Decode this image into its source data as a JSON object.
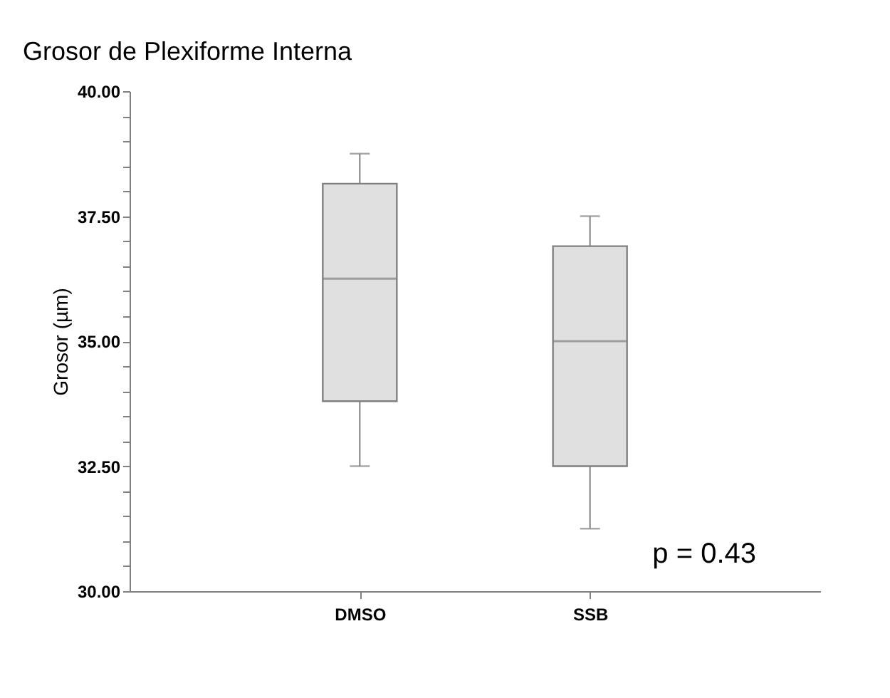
{
  "chart_data": {
    "type": "box",
    "title": "Grosor de Plexiforme Interna",
    "ylabel": "Grosor (µm)",
    "categories": [
      "DMSO",
      "SSB"
    ],
    "boxes": [
      {
        "low": 32.5,
        "q1": 33.8,
        "median": 36.25,
        "q3": 38.15,
        "high": 38.75
      },
      {
        "low": 31.25,
        "q1": 32.5,
        "median": 35.0,
        "q3": 36.9,
        "high": 37.5
      }
    ],
    "color": "#e0e0e0",
    "ylim": [
      30,
      40
    ],
    "yticks": [
      {
        "value": 30,
        "label": "30.00"
      },
      {
        "value": 30.5,
        "label": null
      },
      {
        "value": 31,
        "label": null
      },
      {
        "value": 31.5,
        "label": null
      },
      {
        "value": 32,
        "label": null
      },
      {
        "value": 32.5,
        "label": "32.50"
      },
      {
        "value": 33,
        "label": null
      },
      {
        "value": 33.5,
        "label": null
      },
      {
        "value": 34,
        "label": null
      },
      {
        "value": 34.5,
        "label": null
      },
      {
        "value": 35,
        "label": "35.00"
      },
      {
        "value": 35.5,
        "label": null
      },
      {
        "value": 36,
        "label": null
      },
      {
        "value": 36.5,
        "label": null
      },
      {
        "value": 37,
        "label": null
      },
      {
        "value": 37.5,
        "label": "37.50"
      },
      {
        "value": 38,
        "label": null
      },
      {
        "value": 38.5,
        "label": null
      },
      {
        "value": 39,
        "label": null
      },
      {
        "value": 39.5,
        "label": null
      },
      {
        "value": 40,
        "label": "40.00"
      }
    ],
    "annotations": [
      "p = 0.43"
    ],
    "grid": false
  }
}
